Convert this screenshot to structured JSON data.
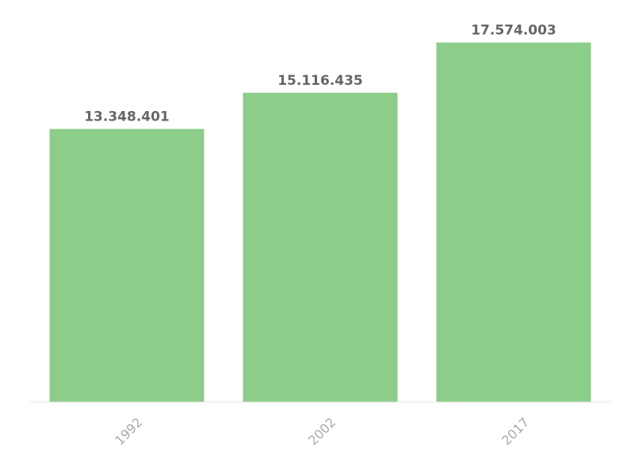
{
  "chart_data": {
    "type": "bar",
    "title": "",
    "xlabel": "",
    "ylabel": "",
    "categories": [
      "1992",
      "2002",
      "2017"
    ],
    "values": [
      13348401,
      15116435,
      17574003
    ],
    "value_labels": [
      "13.348.401",
      "15.116.435",
      "17.574.003"
    ],
    "ylim": [
      0,
      18100000
    ],
    "grid": false,
    "legend": "none",
    "colors": {
      "bar": "#8ccd8a",
      "value_label": "#666666",
      "tick_label": "#aaaaaa",
      "axis": "#e6e6e6"
    }
  }
}
